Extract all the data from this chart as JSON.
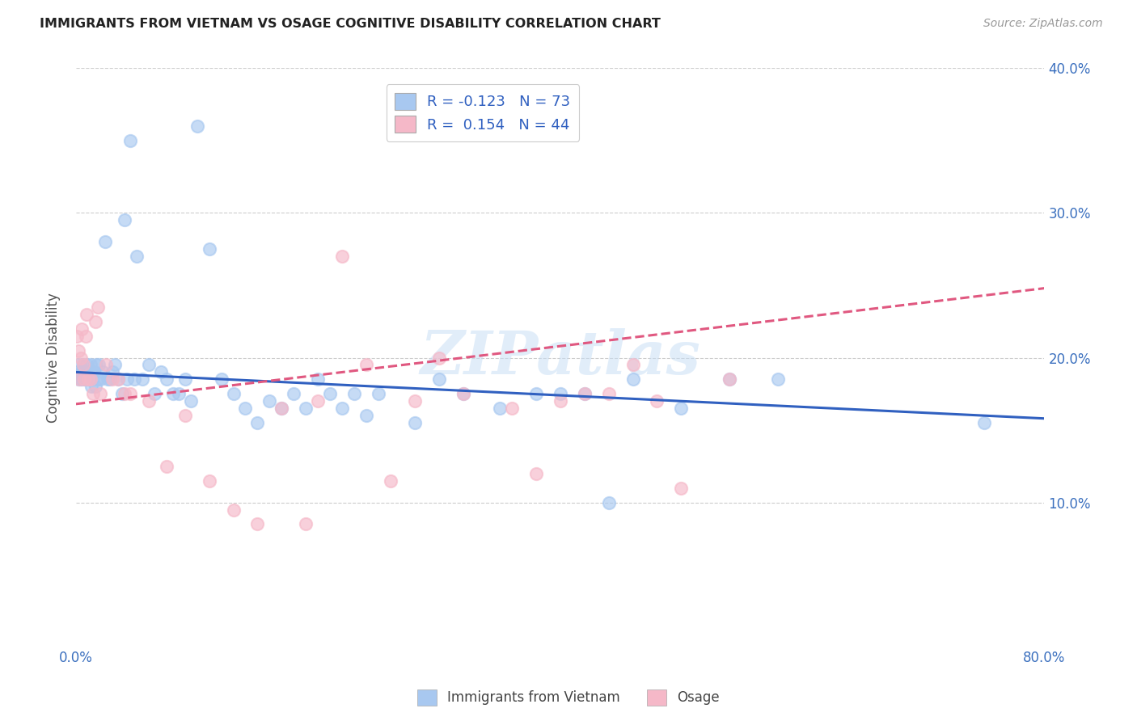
{
  "title": "IMMIGRANTS FROM VIETNAM VS OSAGE COGNITIVE DISABILITY CORRELATION CHART",
  "source": "Source: ZipAtlas.com",
  "ylabel": "Cognitive Disability",
  "watermark": "ZIPatlas",
  "legend_blue_label": "Immigrants from Vietnam",
  "legend_pink_label": "Osage",
  "blue_R": -0.123,
  "blue_N": 73,
  "pink_R": 0.154,
  "pink_N": 44,
  "xlim": [
    0.0,
    0.8
  ],
  "ylim": [
    0.0,
    0.4
  ],
  "blue_color": "#a8c8f0",
  "pink_color": "#f5b8c8",
  "blue_line_color": "#3060c0",
  "pink_line_color": "#e05880",
  "background_color": "#ffffff",
  "grid_color": "#cccccc",
  "blue_line_x0": 0.0,
  "blue_line_y0": 0.19,
  "blue_line_x1": 0.8,
  "blue_line_y1": 0.158,
  "pink_line_x0": 0.0,
  "pink_line_y0": 0.168,
  "pink_line_x1": 0.8,
  "pink_line_y1": 0.248,
  "blue_scatter_x": [
    0.001,
    0.002,
    0.003,
    0.004,
    0.005,
    0.005,
    0.006,
    0.007,
    0.008,
    0.008,
    0.009,
    0.01,
    0.011,
    0.012,
    0.013,
    0.014,
    0.015,
    0.016,
    0.017,
    0.018,
    0.019,
    0.02,
    0.022,
    0.024,
    0.026,
    0.028,
    0.03,
    0.032,
    0.035,
    0.038,
    0.04,
    0.042,
    0.045,
    0.048,
    0.05,
    0.055,
    0.06,
    0.065,
    0.07,
    0.075,
    0.08,
    0.085,
    0.09,
    0.095,
    0.1,
    0.11,
    0.12,
    0.13,
    0.14,
    0.15,
    0.16,
    0.17,
    0.18,
    0.19,
    0.2,
    0.21,
    0.22,
    0.23,
    0.24,
    0.25,
    0.28,
    0.3,
    0.32,
    0.35,
    0.38,
    0.4,
    0.42,
    0.44,
    0.46,
    0.5,
    0.54,
    0.58,
    0.75
  ],
  "blue_scatter_y": [
    0.19,
    0.185,
    0.195,
    0.185,
    0.19,
    0.185,
    0.195,
    0.185,
    0.19,
    0.185,
    0.195,
    0.19,
    0.185,
    0.195,
    0.18,
    0.185,
    0.19,
    0.18,
    0.195,
    0.185,
    0.195,
    0.185,
    0.19,
    0.28,
    0.185,
    0.185,
    0.19,
    0.195,
    0.185,
    0.175,
    0.295,
    0.185,
    0.35,
    0.185,
    0.27,
    0.185,
    0.195,
    0.175,
    0.19,
    0.185,
    0.175,
    0.175,
    0.185,
    0.17,
    0.36,
    0.275,
    0.185,
    0.175,
    0.165,
    0.155,
    0.17,
    0.165,
    0.175,
    0.165,
    0.185,
    0.175,
    0.165,
    0.175,
    0.16,
    0.175,
    0.155,
    0.185,
    0.175,
    0.165,
    0.175,
    0.175,
    0.175,
    0.1,
    0.185,
    0.165,
    0.185,
    0.185,
    0.155
  ],
  "pink_scatter_x": [
    0.001,
    0.002,
    0.003,
    0.004,
    0.005,
    0.006,
    0.007,
    0.008,
    0.009,
    0.01,
    0.012,
    0.014,
    0.016,
    0.018,
    0.02,
    0.025,
    0.03,
    0.035,
    0.04,
    0.045,
    0.06,
    0.075,
    0.09,
    0.11,
    0.13,
    0.15,
    0.17,
    0.19,
    0.2,
    0.22,
    0.24,
    0.26,
    0.28,
    0.3,
    0.32,
    0.36,
    0.38,
    0.4,
    0.42,
    0.44,
    0.46,
    0.48,
    0.5,
    0.54
  ],
  "pink_scatter_y": [
    0.215,
    0.205,
    0.185,
    0.2,
    0.22,
    0.195,
    0.185,
    0.215,
    0.23,
    0.185,
    0.185,
    0.175,
    0.225,
    0.235,
    0.175,
    0.195,
    0.185,
    0.185,
    0.175,
    0.175,
    0.17,
    0.125,
    0.16,
    0.115,
    0.095,
    0.085,
    0.165,
    0.085,
    0.17,
    0.27,
    0.195,
    0.115,
    0.17,
    0.2,
    0.175,
    0.165,
    0.12,
    0.17,
    0.175,
    0.175,
    0.195,
    0.17,
    0.11,
    0.185
  ]
}
